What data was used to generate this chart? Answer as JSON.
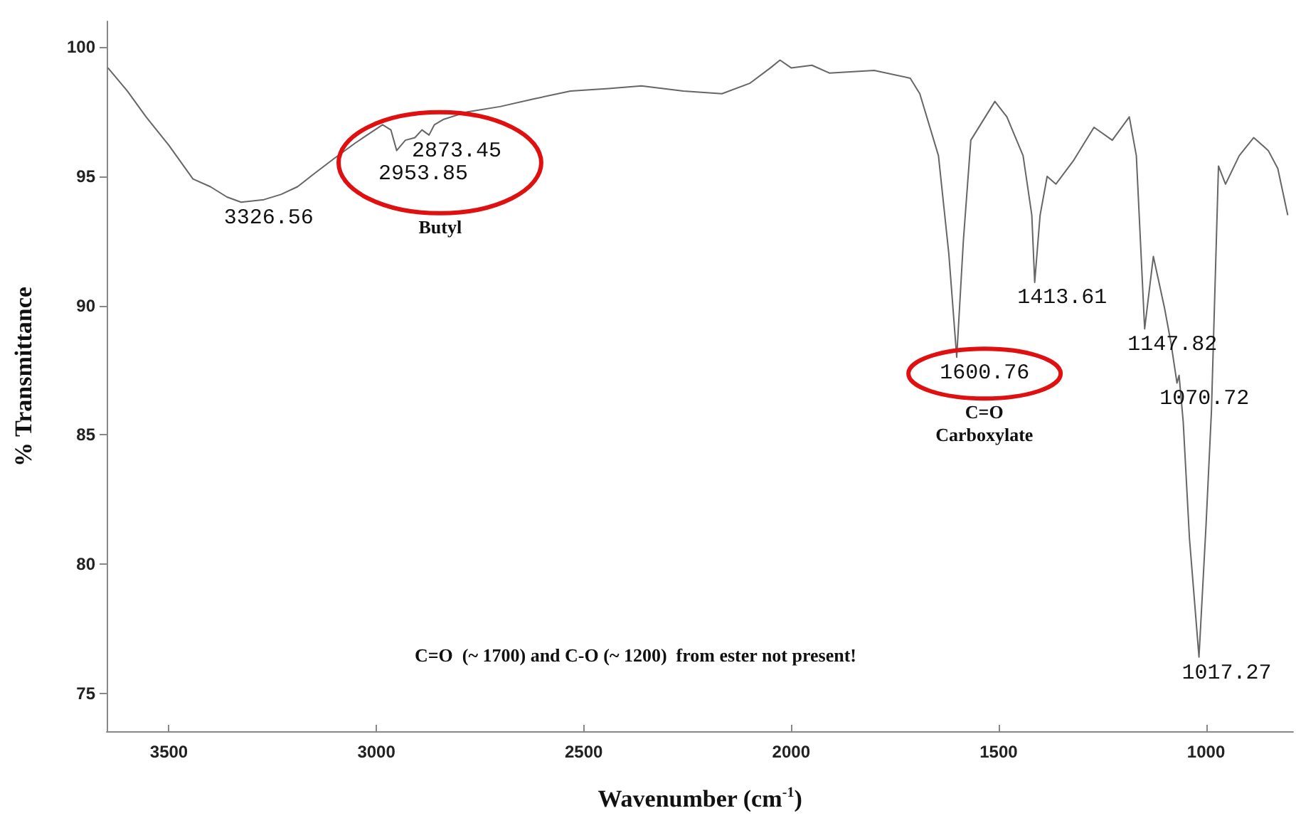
{
  "chart_data": {
    "type": "line",
    "xlabel": "Wavenumber (cm$^{-1}$)",
    "ylabel": "% Transmittance",
    "xlim": [
      3650,
      790
    ],
    "xticks": [
      3500,
      3000,
      2500,
      2000,
      1500,
      1000
    ],
    "ylim": [
      73.5,
      101
    ],
    "yticks": [
      75,
      80,
      85,
      90,
      95,
      100
    ],
    "grid": false,
    "marker": "none",
    "line_style": "solid",
    "series": [
      {
        "color": "#666666",
        "x": [
          3647,
          3600,
          3555,
          3500,
          3442,
          3400,
          3360,
          3326,
          3271,
          3230,
          3190,
          3150,
          3101,
          3050,
          2985,
          2965,
          2951,
          2930,
          2907,
          2890,
          2873,
          2860,
          2839,
          2780,
          2702,
          2620,
          2532,
          2440,
          2361,
          2260,
          2167,
          2100,
          2050,
          2027,
          2000,
          1950,
          1908,
          1800,
          1713,
          1690,
          1645,
          1620,
          1601,
          1585,
          1567,
          1509,
          1480,
          1441,
          1420,
          1413,
          1400,
          1383,
          1362,
          1320,
          1270,
          1226,
          1185,
          1168,
          1148,
          1127,
          1100,
          1085,
          1070,
          1065,
          1055,
          1040,
          1017,
          1000,
          987,
          970,
          953,
          920,
          885,
          850,
          827,
          803
        ],
        "values": [
          99.2,
          98.3,
          97.3,
          96.2,
          94.9,
          94.6,
          94.2,
          94.0,
          94.1,
          94.3,
          94.6,
          95.1,
          95.7,
          96.3,
          97.0,
          96.8,
          96.0,
          96.4,
          96.5,
          96.8,
          96.6,
          97.0,
          97.2,
          97.5,
          97.7,
          98.0,
          98.3,
          98.4,
          98.5,
          98.3,
          98.2,
          98.6,
          99.2,
          99.5,
          99.2,
          99.3,
          99.0,
          99.1,
          98.8,
          98.2,
          95.8,
          92.0,
          88.0,
          92.5,
          96.4,
          97.9,
          97.3,
          95.8,
          93.5,
          90.9,
          93.5,
          95.0,
          94.7,
          95.6,
          96.9,
          96.4,
          97.3,
          95.8,
          89.1,
          91.9,
          89.9,
          88.6,
          87.0,
          87.3,
          85.5,
          81.0,
          76.4,
          81.5,
          85.9,
          95.4,
          94.7,
          95.8,
          96.5,
          96.0,
          95.3,
          93.5
        ]
      }
    ],
    "annotations": [
      {
        "text": "3326.56",
        "x": 3326.56,
        "y": 94.0
      },
      {
        "text": "2873.45",
        "x": 2873.45,
        "y": 96.6
      },
      {
        "text": "2953.85",
        "x": 2953.85,
        "y": 96.0
      },
      {
        "text": "1600.76",
        "x": 1600.76,
        "y": 88.0
      },
      {
        "text": "1413.61",
        "x": 1413.61,
        "y": 90.9
      },
      {
        "text": "1147.82",
        "x": 1147.82,
        "y": 89.1
      },
      {
        "text": "1070.72",
        "x": 1070.72,
        "y": 87.0
      },
      {
        "text": "1017.27",
        "x": 1017.27,
        "y": 76.4
      },
      "Butyl",
      "C=O\nCarboxylate",
      "C=O  (~ 1700) and C-O (~ 1200)  from ester not present!"
    ]
  }
}
